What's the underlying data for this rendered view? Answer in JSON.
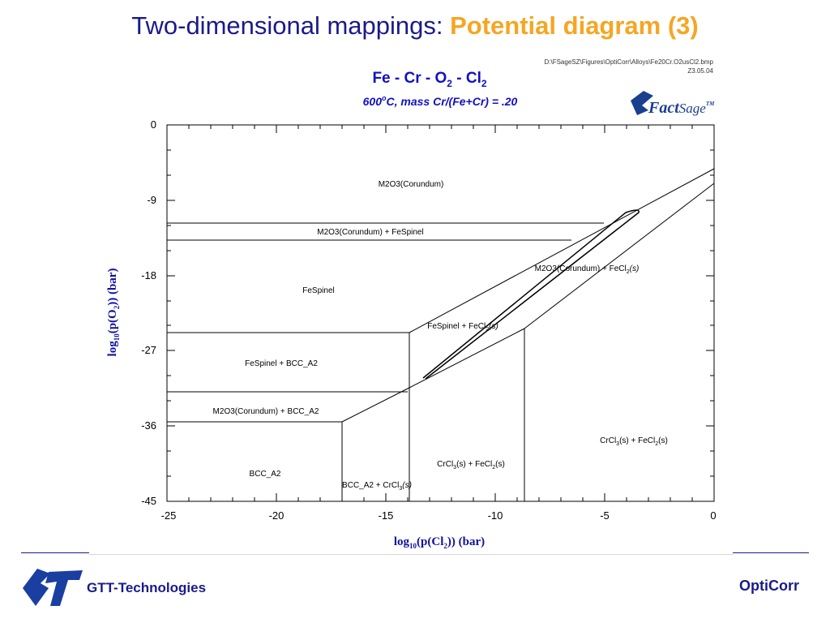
{
  "slide": {
    "title_prefix": "Two-dimensional mappings: ",
    "title_highlight": "Potential diagram (3)",
    "footer_left": "GTT-Technologies",
    "footer_right": "OptiCorr"
  },
  "diagram": {
    "title_parts": {
      "a": "Fe - Cr - O",
      "b": "2",
      "c": " - Cl",
      "d": "2"
    },
    "subtitle_parts": {
      "a": "600",
      "b": "o",
      "c": "C,  mass Cr/(Fe+Cr) = .20"
    },
    "file_path": "D:\\FSageSZ\\Figures\\OptiCorr\\Alloys\\Fe20Cr.O2usCl2.bmp",
    "file_date": "Z3.05.04",
    "logo_text": {
      "a": "Fact",
      "b": "Sage",
      "c": "TM"
    },
    "x_axis": {
      "label_parts": {
        "a": "log",
        "b": "10",
        "c": "(p(Cl",
        "d": "2",
        "e": ")) (bar)"
      },
      "ticks": [
        "-25",
        "-20",
        "-15",
        "-10",
        "-5",
        "0"
      ],
      "range": [
        -25,
        0
      ]
    },
    "y_axis": {
      "label_parts": {
        "a": "log",
        "b": "10",
        "c": "(p(O",
        "d": "2",
        "e": ")) (bar)"
      },
      "ticks": [
        "0",
        "-9",
        "-18",
        "-27",
        "-36",
        "-45"
      ],
      "range": [
        -45,
        0
      ]
    },
    "regions": [
      "M2O3(Corundum)",
      "M2O3(Corundum) + FeSpinel",
      "FeSpinel",
      "FeSpinel + BCC_A2",
      "M2O3(Corundum) + BCC_A2",
      "BCC_A2",
      "BCC_A2 + CrCl",
      "CrCl",
      "M2O3(Corundum) + FeCl",
      "FeSpinel + FeCl",
      "CrCl"
    ],
    "region_parts": {
      "bcc_crcl": {
        "a": "BCC_A2 + CrCl",
        "b": "3",
        "c": "(s)"
      },
      "crcl_fecl_mid": {
        "a": "CrCl",
        "b": "3",
        "c": "(s) + FeCl",
        "d": "2",
        "e": "(s)"
      },
      "m2o3_fecl": {
        "a": "M2O3(Corundum) + FeCl",
        "b": "2",
        "c": "(s)"
      },
      "spinel_fecl": {
        "a": "FeSpinel + FeCl",
        "b": "2",
        "c": "(s)"
      },
      "crcl_fecl_right": {
        "a": "CrCl",
        "b": "3",
        "c": "(s) + FeCl",
        "d": "2",
        "e": "(s)"
      }
    }
  }
}
